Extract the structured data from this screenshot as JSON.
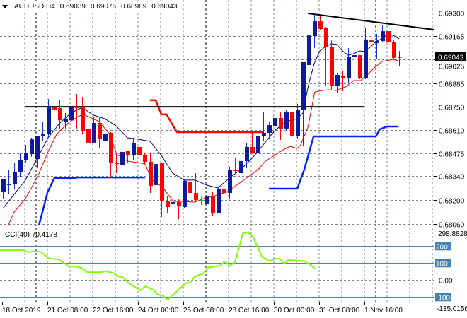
{
  "header": {
    "symbol": "AUDUSD,H4",
    "open": "0.69039",
    "high": "0.69076",
    "low": "0.68989",
    "close": "0.69043",
    "menu_icon": "triangle-down-icon"
  },
  "colors": {
    "bull": "#0b1a9e",
    "bear": "#ff0000",
    "doji": "#00cc00",
    "ma_fast": "#000080",
    "ma_slow": "#ff0000",
    "support_step": "#0022ff",
    "resistance_step": "#ff0000",
    "levels": "#000000",
    "cci": "#80ff00",
    "cci_levels": "#4682b4",
    "price_label_bg": "#000000"
  },
  "price_axis": {
    "ticks": [
      "0.69300",
      "0.69165",
      "0.69025",
      "0.68885",
      "0.68750",
      "0.68610",
      "0.68475",
      "0.68340",
      "0.68200",
      "0.68060"
    ],
    "current_price": "0.69043"
  },
  "time_axis": {
    "labels": [
      "18 Oct 2019",
      "21 Oct 08:00",
      "22 Oct 16:00",
      "24 Oct 00:00",
      "25 Oct 08:00",
      "28 Oct 16:00",
      "30 Oct 00:00",
      "31 Oct 08:00",
      "1 Nov 16:00"
    ]
  },
  "cci_panel": {
    "title": "CCI(40) 70.4178",
    "max_label": "298.8828",
    "min_label": "-135.0156",
    "levels": [
      "200",
      "100",
      "0.00",
      "-100"
    ]
  },
  "chart_data": [
    {
      "type": "candlestick",
      "title": "AUDUSD,H4",
      "ylim": [
        0.6806,
        0.693
      ],
      "x_unit": "bar index (4-hour bars)",
      "ohlc": [
        [
          0.68246,
          0.68325,
          0.68205,
          0.68325
        ],
        [
          0.68288,
          0.68379,
          0.68234,
          0.68296
        ],
        [
          0.68296,
          0.6842,
          0.68267,
          0.68367
        ],
        [
          0.68367,
          0.68474,
          0.68337,
          0.68433
        ],
        [
          0.68433,
          0.68524,
          0.6842,
          0.68474
        ],
        [
          0.6847,
          0.68566,
          0.68454,
          0.68557
        ],
        [
          0.68441,
          0.68578,
          0.68387,
          0.68574
        ],
        [
          0.68574,
          0.68657,
          0.68545,
          0.68591
        ],
        [
          0.68586,
          0.68794,
          0.68566,
          0.68752
        ],
        [
          0.68744,
          0.68794,
          0.68719,
          0.68732
        ],
        [
          0.6874,
          0.68786,
          0.68616,
          0.68669
        ],
        [
          0.68661,
          0.68711,
          0.6862,
          0.68678
        ],
        [
          0.68669,
          0.68777,
          0.6862,
          0.68748
        ],
        [
          0.68748,
          0.68823,
          0.6862,
          0.6874
        ],
        [
          0.68748,
          0.68806,
          0.68586,
          0.68607
        ],
        [
          0.68616,
          0.6864,
          0.68495,
          0.68537
        ],
        [
          0.68537,
          0.6869,
          0.68533,
          0.68653
        ],
        [
          0.68653,
          0.6869,
          0.68503,
          0.68557
        ],
        [
          0.68545,
          0.6862,
          0.68503,
          0.68591
        ],
        [
          0.68595,
          0.68599,
          0.68329,
          0.6842
        ],
        [
          0.6842,
          0.68474,
          0.68358,
          0.68412
        ],
        [
          0.68408,
          0.68495,
          0.68362,
          0.68483
        ],
        [
          0.68487,
          0.68491,
          0.68416,
          0.68466
        ],
        [
          0.68466,
          0.68566,
          0.68437,
          0.68537
        ],
        [
          0.68512,
          0.68566,
          0.68454,
          0.68462
        ],
        [
          0.68462,
          0.68479,
          0.68412,
          0.68425
        ],
        [
          0.68425,
          0.68479,
          0.68242,
          0.68284
        ],
        [
          0.68288,
          0.68437,
          0.68242,
          0.68412
        ],
        [
          0.68416,
          0.68416,
          0.68101,
          0.68196
        ],
        [
          0.68196,
          0.68225,
          0.68122,
          0.68159
        ],
        [
          0.68176,
          0.68192,
          0.68105,
          0.68188
        ],
        [
          0.68188,
          0.68205,
          0.68088,
          0.68163
        ],
        [
          0.68159,
          0.68325,
          0.68151,
          0.68313
        ],
        [
          0.68308,
          0.68325,
          0.68234,
          0.68242
        ],
        [
          0.68242,
          0.68358,
          0.68192,
          0.68201
        ],
        [
          0.68201,
          0.68225,
          0.68171,
          0.68201
        ],
        [
          0.68176,
          0.6825,
          0.68163,
          0.68221
        ],
        [
          0.68221,
          0.68246,
          0.68105,
          0.68122
        ],
        [
          0.68122,
          0.68275,
          0.68122,
          0.68267
        ],
        [
          0.68267,
          0.68329,
          0.68234,
          0.68242
        ],
        [
          0.68242,
          0.68396,
          0.68205,
          0.68379
        ],
        [
          0.68379,
          0.6845,
          0.68358,
          0.68371
        ],
        [
          0.68358,
          0.68433,
          0.6835,
          0.68429
        ],
        [
          0.68429,
          0.68533,
          0.68387,
          0.68512
        ],
        [
          0.68512,
          0.68595,
          0.6847,
          0.68474
        ],
        [
          0.68474,
          0.68595,
          0.6842,
          0.68574
        ],
        [
          0.68574,
          0.68715,
          0.68545,
          0.68595
        ],
        [
          0.68595,
          0.68657,
          0.68557,
          0.6864
        ],
        [
          0.68636,
          0.6869,
          0.68483,
          0.68682
        ],
        [
          0.68682,
          0.68719,
          0.68553,
          0.6862
        ],
        [
          0.6862,
          0.68732,
          0.68607,
          0.68715
        ],
        [
          0.68715,
          0.6874,
          0.68533,
          0.68574
        ],
        [
          0.68574,
          0.68765,
          0.68562,
          0.68728
        ],
        [
          0.68732,
          0.6901,
          0.68516,
          0.6901
        ],
        [
          0.68993,
          0.6918,
          0.6896,
          0.69167
        ],
        [
          0.69163,
          0.69296,
          0.69093,
          0.6925
        ],
        [
          0.6925,
          0.6928,
          0.69197,
          0.69205
        ],
        [
          0.69209,
          0.69217,
          0.68869,
          0.69097
        ],
        [
          0.69097,
          0.69138,
          0.68848,
          0.68869
        ],
        [
          0.68869,
          0.68943,
          0.68827,
          0.68935
        ],
        [
          0.68931,
          0.6896,
          0.6884,
          0.68914
        ],
        [
          0.68914,
          0.69093,
          0.68885,
          0.69043
        ],
        [
          0.69039,
          0.69114,
          0.69001,
          0.69051
        ],
        [
          0.69051,
          0.69051,
          0.6891,
          0.68918
        ],
        [
          0.68918,
          0.69209,
          0.6891,
          0.69143
        ],
        [
          0.69138,
          0.69147,
          0.69051,
          0.69126
        ],
        [
          0.69122,
          0.69176,
          0.69031,
          0.69134
        ],
        [
          0.69134,
          0.6923,
          0.69126,
          0.69192
        ],
        [
          0.69192,
          0.69242,
          0.69084,
          0.69126
        ],
        [
          0.6913,
          0.69138,
          0.69031,
          0.69035
        ],
        [
          0.69039,
          0.69076,
          0.68989,
          0.69043
        ]
      ],
      "overlays": {
        "ma_fast": [
          [
            0,
            0.68151
          ],
          [
            2,
            0.68234
          ],
          [
            4,
            0.68317
          ],
          [
            6,
            0.68441
          ],
          [
            8,
            0.68566
          ],
          [
            10,
            0.68649
          ],
          [
            12,
            0.68711
          ],
          [
            14,
            0.68744
          ],
          [
            16,
            0.68699
          ],
          [
            18,
            0.68678
          ],
          [
            20,
            0.68636
          ],
          [
            22,
            0.68566
          ],
          [
            24,
            0.68557
          ],
          [
            26,
            0.68545
          ],
          [
            28,
            0.68462
          ],
          [
            30,
            0.68358
          ],
          [
            32,
            0.68317
          ],
          [
            34,
            0.68317
          ],
          [
            36,
            0.68288
          ],
          [
            38,
            0.68271
          ],
          [
            40,
            0.68329
          ],
          [
            42,
            0.68379
          ],
          [
            44,
            0.68445
          ],
          [
            46,
            0.68524
          ],
          [
            48,
            0.68607
          ],
          [
            50,
            0.68661
          ],
          [
            52,
            0.68678
          ],
          [
            53,
            0.68711
          ],
          [
            54,
            0.68877
          ],
          [
            55,
            0.69001
          ],
          [
            56,
            0.69076
          ],
          [
            57,
            0.69101
          ],
          [
            58,
            0.69118
          ],
          [
            59,
            0.69114
          ],
          [
            60,
            0.69076
          ],
          [
            61,
            0.69051
          ],
          [
            62,
            0.6906
          ],
          [
            63,
            0.69076
          ],
          [
            64,
            0.69072
          ],
          [
            65,
            0.69101
          ],
          [
            66,
            0.69134
          ],
          [
            67,
            0.69147
          ],
          [
            68,
            0.69176
          ],
          [
            69,
            0.69167
          ],
          [
            70,
            0.69147
          ]
        ],
        "ma_slow": [
          [
            1,
            0.68055
          ],
          [
            2,
            0.6813
          ],
          [
            3.9,
            0.68205
          ],
          [
            5.1,
            0.68275
          ],
          [
            6.4,
            0.68358
          ],
          [
            8.25,
            0.68503
          ],
          [
            9.5,
            0.68586
          ],
          [
            11.4,
            0.68649
          ],
          [
            13.25,
            0.6869
          ],
          [
            14.25,
            0.68703
          ],
          [
            15.1,
            0.6869
          ],
          [
            17,
            0.68661
          ],
          [
            18.9,
            0.68586
          ],
          [
            20.1,
            0.6847
          ],
          [
            22,
            0.68429
          ],
          [
            23.9,
            0.6842
          ],
          [
            25.1,
            0.68412
          ],
          [
            26.4,
            0.68317
          ],
          [
            28.25,
            0.68275
          ],
          [
            30.1,
            0.68192
          ],
          [
            32,
            0.68192
          ],
          [
            33.9,
            0.68188
          ],
          [
            35.75,
            0.68213
          ],
          [
            37,
            0.68221
          ],
          [
            38.25,
            0.68234
          ],
          [
            39.5,
            0.68246
          ],
          [
            42,
            0.68304
          ],
          [
            43.9,
            0.6835
          ],
          [
            45.1,
            0.68379
          ],
          [
            46.4,
            0.68429
          ],
          [
            47.6,
            0.68454
          ],
          [
            49.5,
            0.68495
          ],
          [
            50.75,
            0.68516
          ],
          [
            52,
            0.68503
          ],
          [
            52.6,
            0.68524
          ],
          [
            53.9,
            0.68628
          ],
          [
            55.1,
            0.68835
          ],
          [
            56.4,
            0.68844
          ],
          [
            57.6,
            0.68848
          ],
          [
            58.9,
            0.68844
          ],
          [
            60.75,
            0.68869
          ],
          [
            62,
            0.68902
          ],
          [
            63.25,
            0.68902
          ],
          [
            64.5,
            0.68939
          ],
          [
            65.75,
            0.68981
          ],
          [
            67,
            0.69014
          ],
          [
            68.9,
            0.69026
          ],
          [
            69.9,
            0.69018
          ]
        ],
        "support_step_1": [
          [
            6.4,
            0.68055
          ],
          [
            7,
            0.6813
          ],
          [
            7.9,
            0.68246
          ],
          [
            9.1,
            0.68329
          ],
          [
            12.9,
            0.68329
          ],
          [
            13,
            0.68333
          ],
          [
            25.1,
            0.68333
          ]
        ],
        "support_step_2": [
          [
            47,
            0.68267
          ],
          [
            52,
            0.68267
          ],
          [
            53.25,
            0.68379
          ],
          [
            54.9,
            0.68574
          ],
          [
            65.9,
            0.68574
          ],
          [
            66.6,
            0.68616
          ],
          [
            67.9,
            0.68632
          ],
          [
            69.9,
            0.68632
          ]
        ],
        "resistance_step": [
          [
            26,
            0.68786
          ],
          [
            27,
            0.68786
          ],
          [
            28,
            0.68703
          ],
          [
            28.9,
            0.68703
          ],
          [
            30.75,
            0.68599
          ],
          [
            45.9,
            0.68599
          ]
        ],
        "horizontal_level": [
          [
            3.9,
            0.68748
          ],
          [
            63.9,
            0.68748
          ]
        ],
        "trendline": [
          [
            53.9,
            0.69296
          ],
          [
            82,
            0.69176
          ]
        ]
      }
    },
    {
      "type": "line",
      "title": "CCI(40)",
      "last_value": 70.4178,
      "ylim": [
        -135.0156,
        298.8828
      ],
      "levels": [
        200,
        100,
        0,
        -100
      ],
      "points": [
        [
          -0.5,
          176
        ],
        [
          3.6,
          176
        ],
        [
          4.5,
          164
        ],
        [
          5.75,
          171
        ],
        [
          6.75,
          164
        ],
        [
          8.25,
          126
        ],
        [
          9.9,
          122
        ],
        [
          11.6,
          80
        ],
        [
          12.9,
          80
        ],
        [
          13.9,
          71
        ],
        [
          14.9,
          46
        ],
        [
          17.4,
          46
        ],
        [
          18,
          53
        ],
        [
          19.5,
          42
        ],
        [
          20.4,
          21
        ],
        [
          21.1,
          18
        ],
        [
          22.4,
          -21
        ],
        [
          24.25,
          -62
        ],
        [
          25.1,
          -37
        ],
        [
          26.6,
          -58
        ],
        [
          27.4,
          -86
        ],
        [
          28.25,
          -90
        ],
        [
          29.1,
          -114
        ],
        [
          30.4,
          -76
        ],
        [
          32.4,
          -17
        ],
        [
          33,
          -17
        ],
        [
          33.9,
          21
        ],
        [
          35.4,
          39
        ],
        [
          36.4,
          76
        ],
        [
          38.25,
          83
        ],
        [
          39.25,
          111
        ],
        [
          40.1,
          83
        ],
        [
          41,
          104
        ],
        [
          42.4,
          275
        ],
        [
          43.25,
          282
        ],
        [
          44.1,
          261
        ],
        [
          45.75,
          139
        ],
        [
          47,
          112
        ],
        [
          48.25,
          126
        ],
        [
          48.9,
          126
        ],
        [
          49.75,
          97
        ],
        [
          50.4,
          118
        ],
        [
          52,
          115
        ],
        [
          53.25,
          112
        ],
        [
          54.1,
          95
        ],
        [
          55.1,
          70.4
        ]
      ]
    }
  ]
}
